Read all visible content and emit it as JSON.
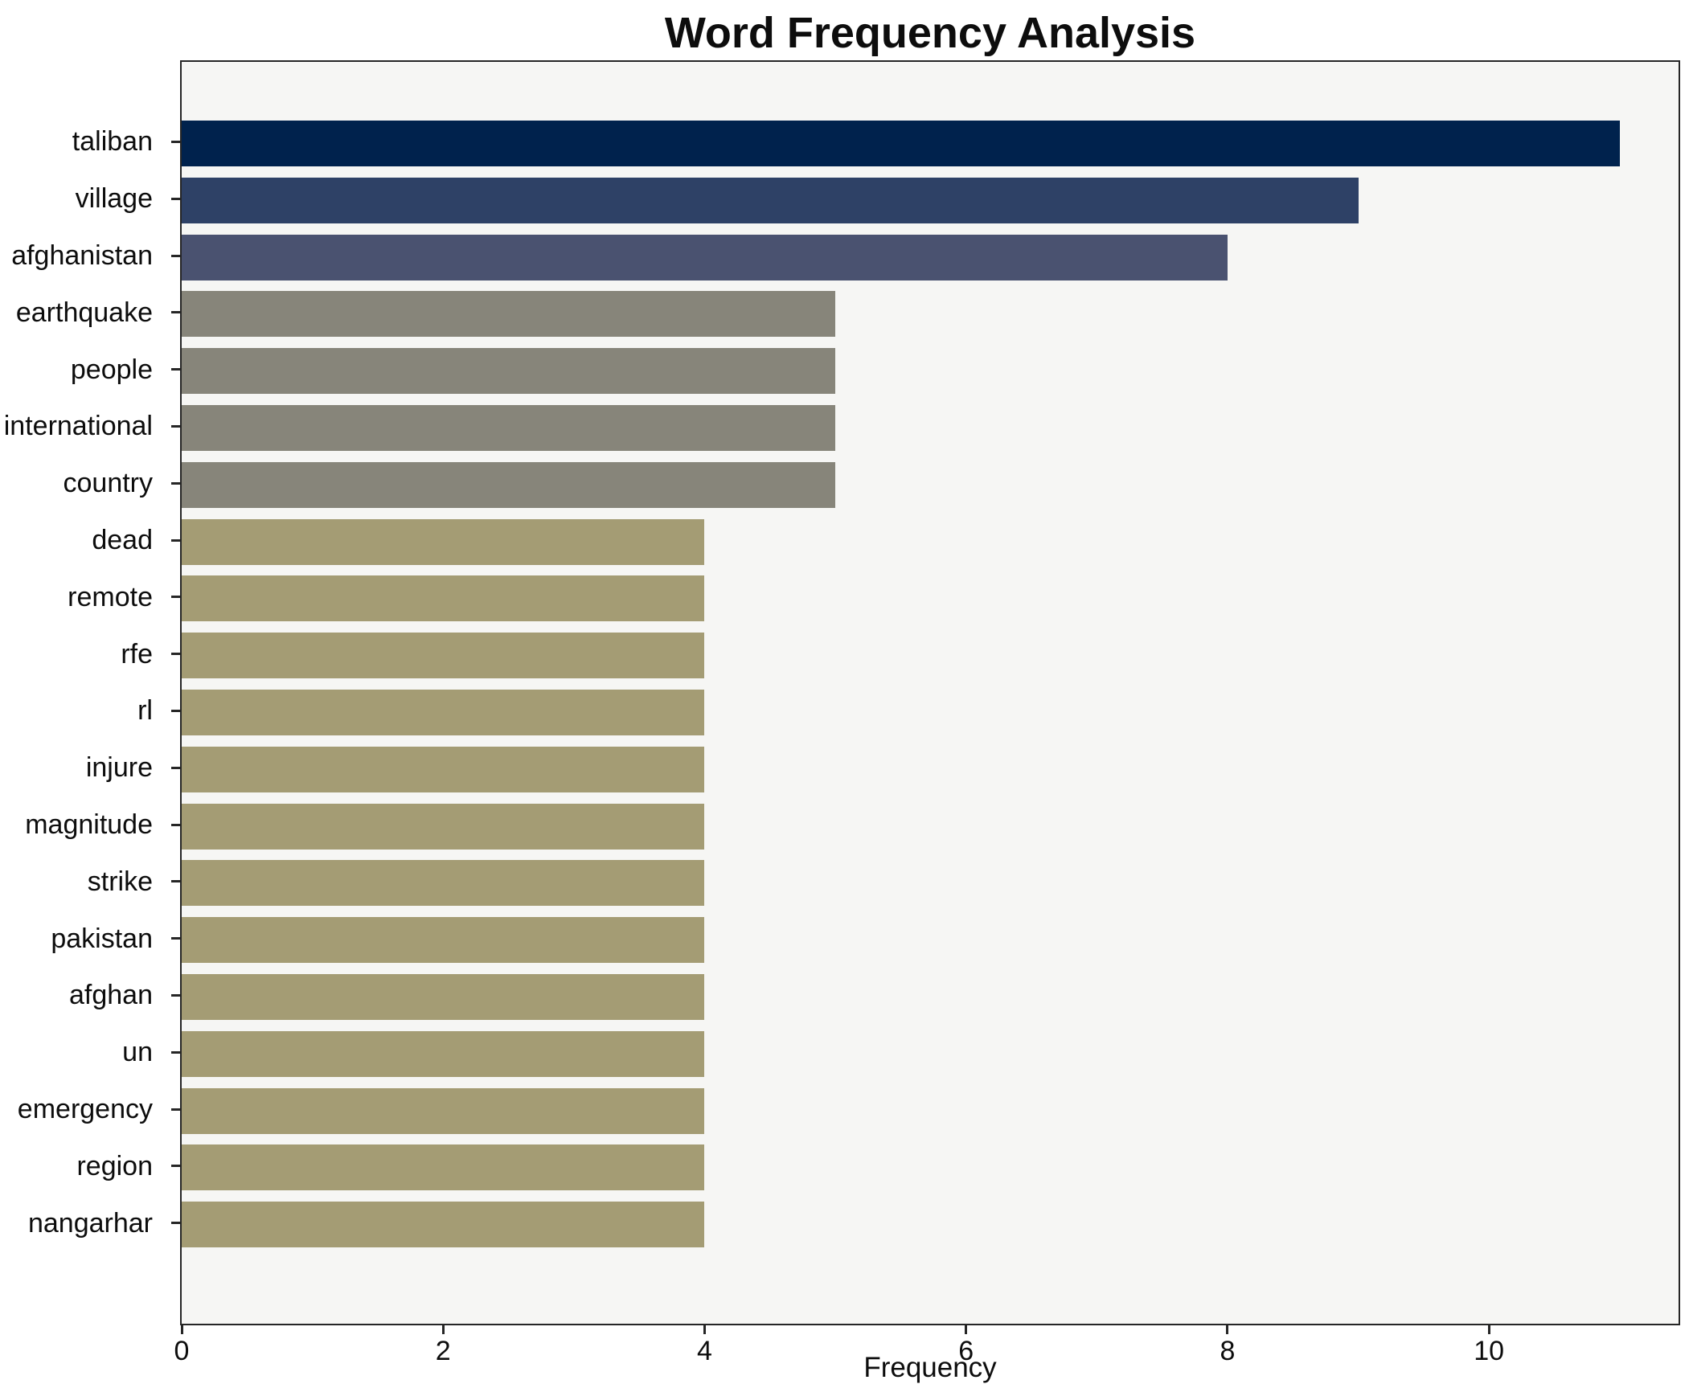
{
  "chart_data": {
    "type": "bar",
    "orientation": "horizontal",
    "title": "Word Frequency Analysis",
    "xlabel": "Frequency",
    "ylabel": "",
    "grid": false,
    "legend_position": "none",
    "plot_background": "#f6f6f4",
    "xlim": [
      0,
      11.45
    ],
    "xticks": [
      0,
      2,
      4,
      6,
      8,
      10
    ],
    "categories": [
      "taliban",
      "village",
      "afghanistan",
      "earthquake",
      "people",
      "international",
      "country",
      "dead",
      "remote",
      "rfe",
      "rl",
      "injure",
      "magnitude",
      "strike",
      "pakistan",
      "afghan",
      "un",
      "emergency",
      "region",
      "nangarhar"
    ],
    "values": [
      11,
      9,
      8,
      5,
      5,
      5,
      5,
      4,
      4,
      4,
      4,
      4,
      4,
      4,
      4,
      4,
      4,
      4,
      4,
      4
    ],
    "colors": [
      "#00224d",
      "#2e4166",
      "#4a5270",
      "#87857a",
      "#87857a",
      "#87857a",
      "#87857a",
      "#a49c74",
      "#a49c74",
      "#a49c74",
      "#a49c74",
      "#a49c74",
      "#a49c74",
      "#a49c74",
      "#a49c74",
      "#a49c74",
      "#a49c74",
      "#a49c74",
      "#a49c74",
      "#a49c74"
    ]
  }
}
